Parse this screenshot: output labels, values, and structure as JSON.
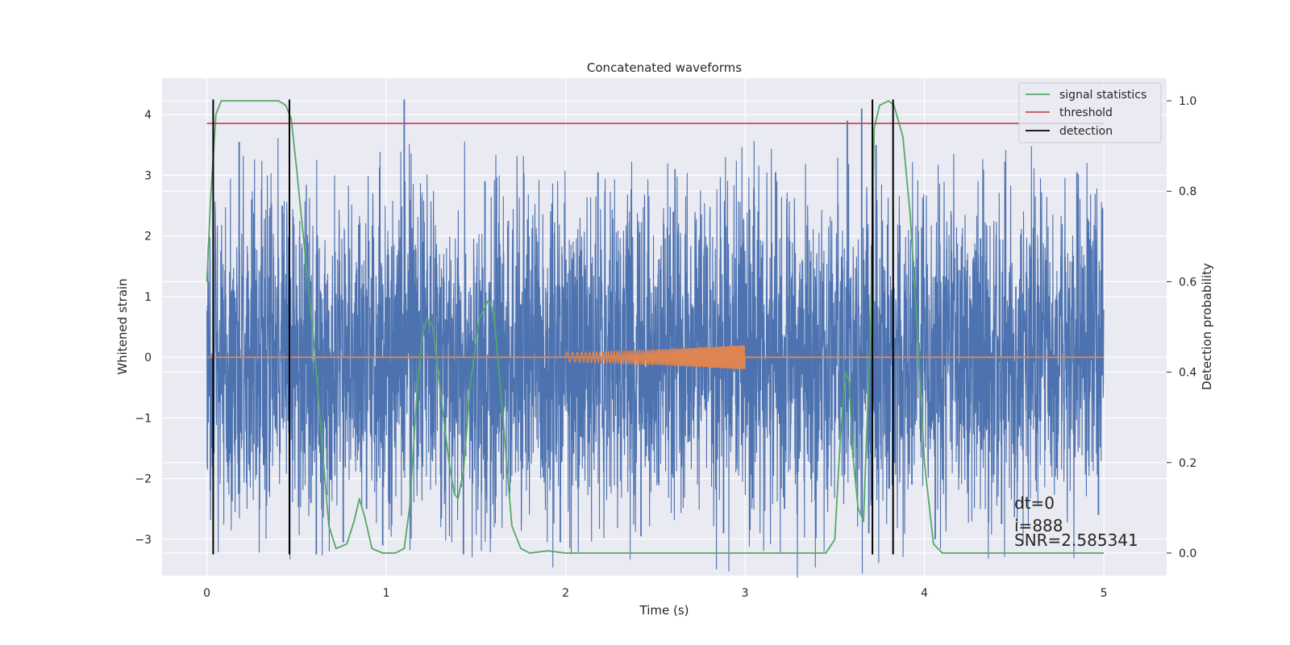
{
  "chart_data": {
    "type": "line",
    "title": "Concatenated waveforms",
    "xlabel": "Time (s)",
    "ylabel": "Whitened strain",
    "y2label": "Detection probability",
    "xlim": [
      -0.25,
      5.35
    ],
    "ylim": [
      -3.6,
      4.6
    ],
    "y2lim": [
      -0.05,
      1.05
    ],
    "x_ticks": [
      0,
      1,
      2,
      3,
      4,
      5
    ],
    "x_tick_labels": [
      "0",
      "1",
      "2",
      "3",
      "4",
      "5"
    ],
    "y_ticks": [
      -3,
      -2,
      -1,
      0,
      1,
      2,
      3,
      4
    ],
    "y_tick_labels": [
      "−3",
      "−2",
      "−1",
      "0",
      "1",
      "2",
      "3",
      "4"
    ],
    "y2_ticks": [
      0.0,
      0.2,
      0.4,
      0.6,
      0.8,
      1.0
    ],
    "y2_tick_labels": [
      "0.0",
      "0.2",
      "0.4",
      "0.6",
      "0.8",
      "1.0"
    ],
    "grid": true,
    "legend_position": "top-right",
    "colors": {
      "strain": "#4c72b0",
      "template": "#dd8452",
      "signal_statistics": "#55a868",
      "threshold": "#c44e52",
      "detection": "#000000",
      "plot_bg": "#eaeaf2",
      "grid": "#ffffff"
    },
    "series": [
      {
        "name": "signal statistics",
        "axis": "right",
        "x": [
          0.0,
          0.02,
          0.05,
          0.08,
          0.1,
          0.15,
          0.2,
          0.3,
          0.4,
          0.44,
          0.47,
          0.5,
          0.55,
          0.6,
          0.65,
          0.68,
          0.72,
          0.78,
          0.82,
          0.85,
          0.88,
          0.92,
          0.98,
          1.05,
          1.1,
          1.13,
          1.17,
          1.2,
          1.23,
          1.26,
          1.3,
          1.35,
          1.38,
          1.4,
          1.43,
          1.47,
          1.52,
          1.57,
          1.6,
          1.65,
          1.7,
          1.75,
          1.8,
          1.9,
          2.0,
          2.5,
          3.0,
          3.45,
          3.5,
          3.53,
          3.56,
          3.58,
          3.6,
          3.63,
          3.66,
          3.7,
          3.72,
          3.75,
          3.8,
          3.83,
          3.88,
          3.92,
          3.96,
          4.0,
          4.05,
          4.1,
          4.5,
          5.0
        ],
        "y": [
          0.6,
          0.78,
          0.97,
          1.0,
          1.0,
          1.0,
          1.0,
          1.0,
          1.0,
          0.99,
          0.96,
          0.85,
          0.65,
          0.45,
          0.2,
          0.06,
          0.01,
          0.02,
          0.07,
          0.12,
          0.08,
          0.01,
          0.0,
          0.0,
          0.01,
          0.1,
          0.35,
          0.48,
          0.52,
          0.5,
          0.36,
          0.2,
          0.13,
          0.12,
          0.18,
          0.38,
          0.52,
          0.56,
          0.53,
          0.3,
          0.06,
          0.01,
          0.0,
          0.005,
          0.0,
          0.0,
          0.0,
          0.0,
          0.03,
          0.25,
          0.4,
          0.38,
          0.22,
          0.1,
          0.07,
          0.5,
          0.94,
          0.99,
          1.0,
          0.99,
          0.92,
          0.75,
          0.5,
          0.2,
          0.02,
          0.0,
          0.0,
          0.0
        ]
      },
      {
        "name": "threshold",
        "axis": "right",
        "x": [
          0.0,
          5.0
        ],
        "y": [
          0.95,
          0.95
        ]
      },
      {
        "name": "detection",
        "axis": "left",
        "x": [
          0.035,
          0.46,
          3.71,
          3.825
        ],
        "y_range": [
          -3.25,
          4.25
        ]
      }
    ],
    "strain": {
      "x_range": [
        0.0,
        5.0
      ],
      "envelope_core": 1.2,
      "spikes": [
        {
          "x": 0.02,
          "y": -2.2
        },
        {
          "x": 0.18,
          "y": 3.55
        },
        {
          "x": 0.25,
          "y": 2.6
        },
        {
          "x": 0.42,
          "y": 2.5
        },
        {
          "x": 0.53,
          "y": 1.8
        },
        {
          "x": 0.58,
          "y": -2.4
        },
        {
          "x": 0.61,
          "y": -3.25
        },
        {
          "x": 0.76,
          "y": -3.05
        },
        {
          "x": 0.89,
          "y": -2.5
        },
        {
          "x": 0.98,
          "y": -3.1
        },
        {
          "x": 1.1,
          "y": 4.25
        },
        {
          "x": 1.43,
          "y": -3.25
        },
        {
          "x": 1.55,
          "y": 2.9
        },
        {
          "x": 1.68,
          "y": 2.25
        },
        {
          "x": 1.97,
          "y": -3.05
        },
        {
          "x": 2.18,
          "y": 3.05
        },
        {
          "x": 2.42,
          "y": -2.95
        },
        {
          "x": 2.6,
          "y": 2.4
        },
        {
          "x": 2.88,
          "y": -2.9
        },
        {
          "x": 3.05,
          "y": 2.75
        },
        {
          "x": 3.17,
          "y": 3.05
        },
        {
          "x": 3.22,
          "y": -2.5
        },
        {
          "x": 3.57,
          "y": 3.9
        },
        {
          "x": 3.65,
          "y": 4.1
        },
        {
          "x": 3.69,
          "y": -2.9
        },
        {
          "x": 3.73,
          "y": 3.5
        },
        {
          "x": 3.93,
          "y": -2.1
        },
        {
          "x": 4.06,
          "y": -3.0
        },
        {
          "x": 4.43,
          "y": -2.75
        },
        {
          "x": 4.85,
          "y": 3.05
        },
        {
          "x": 4.97,
          "y": -2.6
        }
      ]
    },
    "template": {
      "chirp_start": 2.0,
      "chirp_end": 3.0,
      "amplitude_start": 0.08,
      "amplitude_end": 0.2
    },
    "annotations": {
      "dt": "dt=0",
      "i": "i=888",
      "snr": "SNR=2.585341"
    }
  }
}
